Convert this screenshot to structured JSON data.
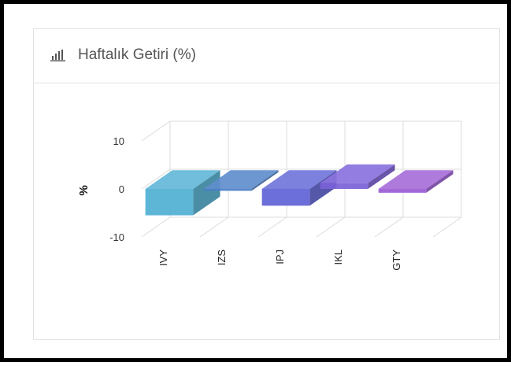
{
  "widget": {
    "title": "Haftalık Getiri (%)",
    "icon": "bar-chart-icon"
  },
  "chart_data": {
    "type": "bar",
    "categories": [
      "IVY",
      "IZS",
      "IPJ",
      "IKL",
      "GTY"
    ],
    "values": [
      -5.5,
      -0.4,
      -3.5,
      1.2,
      -0.8
    ],
    "colors": [
      "#4fb0d3",
      "#4a7fc6",
      "#5f63d6",
      "#7b5fd8",
      "#9b5bd4"
    ],
    "ylabel": "%",
    "ylim": [
      -10,
      10
    ],
    "yticks": [
      -10,
      0,
      10
    ],
    "grid": true,
    "threeD": true
  }
}
